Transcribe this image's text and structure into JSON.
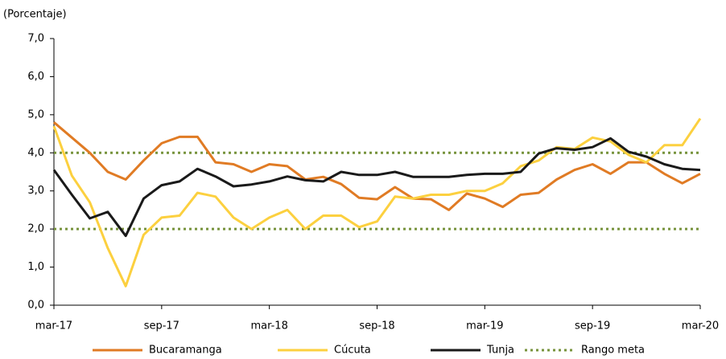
{
  "chart_data": {
    "type": "line",
    "y_label": "(Porcentaje)",
    "categories": [
      "mar-17",
      null,
      null,
      null,
      null,
      null,
      "sep-17",
      null,
      null,
      null,
      null,
      null,
      "mar-18",
      null,
      null,
      null,
      null,
      null,
      "sep-18",
      null,
      null,
      null,
      null,
      null,
      "mar-19",
      null,
      null,
      null,
      null,
      null,
      "sep-19",
      null,
      null,
      null,
      null,
      null,
      "mar-20"
    ],
    "series": [
      {
        "name": "Bucaramanga",
        "color": "#e07b24",
        "values": [
          4.8,
          4.4,
          4.0,
          3.5,
          3.3,
          3.8,
          4.25,
          4.42,
          4.42,
          3.75,
          3.7,
          3.5,
          3.7,
          3.65,
          3.3,
          3.37,
          3.18,
          2.82,
          2.78,
          3.1,
          2.8,
          2.78,
          2.5,
          2.93,
          2.8,
          2.58,
          2.9,
          2.95,
          3.3,
          3.55,
          3.7,
          3.45,
          3.75,
          3.75,
          3.45,
          3.2,
          3.45
        ]
      },
      {
        "name": "Cúcuta",
        "color": "#fcd03f",
        "values": [
          4.7,
          3.4,
          2.7,
          1.5,
          0.5,
          1.85,
          2.3,
          2.35,
          2.95,
          2.85,
          2.3,
          2.0,
          2.3,
          2.5,
          2.0,
          2.35,
          2.35,
          2.05,
          2.2,
          2.85,
          2.8,
          2.9,
          2.9,
          3.0,
          3.0,
          3.2,
          3.65,
          3.8,
          4.15,
          4.1,
          4.4,
          4.3,
          3.95,
          3.75,
          4.2,
          4.2,
          4.9
        ]
      },
      {
        "name": "Tunja",
        "color": "#1a1a1a",
        "values": [
          3.55,
          2.9,
          2.28,
          2.45,
          1.82,
          2.8,
          3.15,
          3.25,
          3.58,
          3.38,
          3.12,
          3.17,
          3.25,
          3.38,
          3.28,
          3.25,
          3.5,
          3.42,
          3.42,
          3.5,
          3.37,
          3.37,
          3.37,
          3.42,
          3.45,
          3.45,
          3.5,
          3.98,
          4.12,
          4.08,
          4.15,
          4.38,
          4.03,
          3.9,
          3.7,
          3.58,
          3.55
        ]
      }
    ],
    "target_range": {
      "name": "Rango meta",
      "color": "#77933c",
      "values": [
        2,
        4
      ]
    },
    "ylim": [
      0,
      7
    ],
    "yticks": [
      {
        "value": 0,
        "label": "0,0"
      },
      {
        "value": 1,
        "label": "1,0"
      },
      {
        "value": 2,
        "label": "2,0"
      },
      {
        "value": 3,
        "label": "3,0"
      },
      {
        "value": 4,
        "label": "4,0"
      },
      {
        "value": 5,
        "label": "5,0"
      },
      {
        "value": 6,
        "label": "6,0"
      },
      {
        "value": 7,
        "label": "7,0"
      }
    ],
    "grid": false,
    "legend": "bottom"
  }
}
